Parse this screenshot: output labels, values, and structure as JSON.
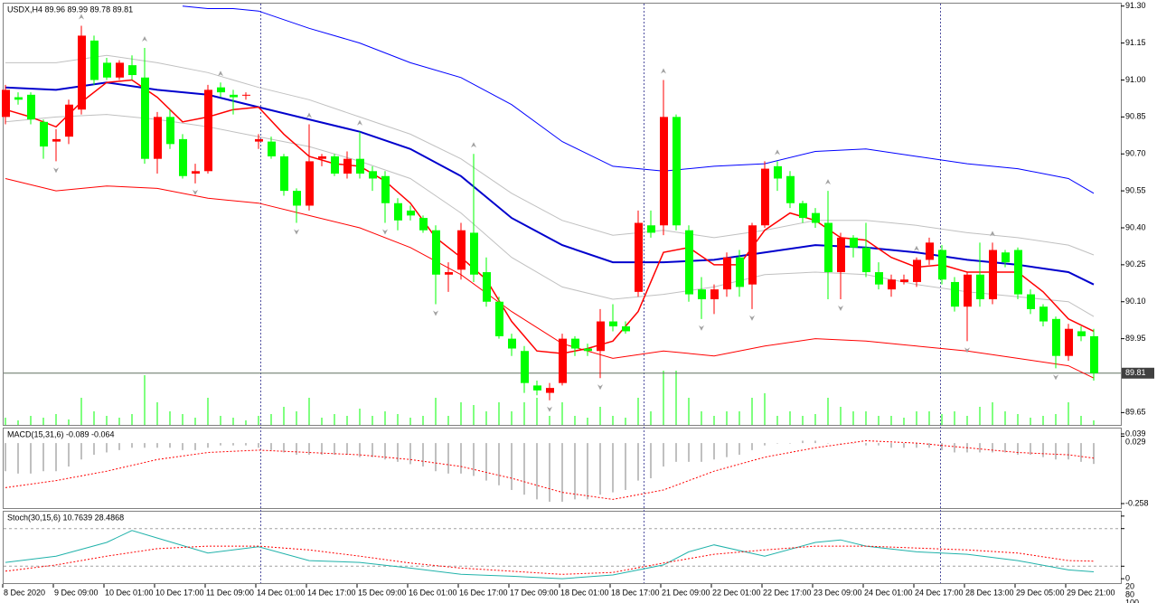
{
  "chart_data": [
    {
      "type": "candlestick",
      "title": "USDX,H4  89.96 89.99 89.78 89.81",
      "categories": [
        "8 Dec 2020",
        null,
        null,
        null,
        "9 Dec 09:00",
        null,
        null,
        null,
        "10 Dec 01:00",
        null,
        null,
        null,
        "10 Dec 17:00",
        null,
        null,
        null,
        "11 Dec 09:00",
        null,
        null,
        null,
        "14 Dec 01:00",
        null,
        null,
        null,
        "14 Dec 17:00",
        null,
        null,
        null,
        "15 Dec 09:00",
        null,
        null,
        null,
        "16 Dec 01:00",
        null,
        null,
        null,
        "16 Dec 17:00",
        null,
        null,
        null,
        "17 Dec 09:00",
        null,
        null,
        null,
        "18 Dec 01:00",
        null,
        null,
        null,
        "18 Dec 17:00",
        null,
        null,
        null,
        "21 Dec 09:00",
        null,
        null,
        null,
        "22 Dec 01:00",
        null,
        null,
        null,
        "22 Dec 17:00",
        null,
        null,
        null,
        "23 Dec 09:00",
        null,
        null,
        null,
        "24 Dec 01:00",
        null,
        null,
        null,
        "24 Dec 17:00",
        null,
        null,
        null,
        "28 Dec 13:00",
        null,
        null,
        null,
        "29 Dec 05:00",
        null,
        null,
        null,
        "29 Dec 21:00",
        null,
        null
      ],
      "open": [
        90.85,
        90.93,
        90.94,
        90.83,
        90.75,
        90.77,
        90.88,
        91.16,
        91.07,
        91.01,
        91.06,
        91.01,
        90.68,
        90.85,
        90.76,
        90.62,
        90.63,
        90.97,
        90.94,
        90.94,
        90.75,
        90.75,
        90.69,
        90.55,
        90.49,
        90.68,
        90.69,
        90.62,
        90.68,
        90.63,
        90.61,
        90.5,
        90.47,
        90.44,
        90.39,
        90.21,
        90.23,
        90.38,
        90.22,
        90.1,
        89.95,
        89.9,
        89.76,
        89.73,
        89.77,
        89.95,
        89.91,
        89.9,
        90.02,
        90.0,
        90.14,
        90.41,
        90.41,
        90.85,
        90.39,
        90.15,
        90.11,
        90.15,
        90.28,
        90.17,
        90.41,
        90.65,
        90.61,
        90.5,
        90.46,
        90.42,
        90.22,
        90.36,
        90.32,
        90.22,
        90.15,
        90.18,
        90.18,
        90.27,
        90.31,
        90.18,
        90.08,
        90.21,
        90.11,
        90.3,
        90.31,
        90.13,
        90.08,
        90.03,
        89.88,
        89.98,
        89.96
      ],
      "high": [
        90.98,
        90.95,
        90.95,
        90.84,
        90.8,
        90.92,
        91.22,
        91.18,
        91.09,
        91.08,
        91.1,
        91.13,
        90.87,
        90.88,
        90.78,
        90.66,
        90.98,
        90.99,
        90.96,
        90.95,
        90.78,
        90.77,
        90.7,
        90.56,
        90.82,
        90.7,
        90.7,
        90.71,
        90.79,
        90.65,
        90.63,
        90.52,
        90.49,
        90.45,
        90.41,
        90.26,
        90.42,
        90.7,
        90.28,
        90.12,
        89.97,
        89.92,
        89.78,
        89.77,
        89.97,
        89.96,
        89.93,
        90.07,
        90.09,
        90.02,
        90.47,
        90.47,
        91.0,
        90.86,
        90.41,
        90.2,
        90.17,
        90.3,
        90.31,
        90.42,
        90.67,
        90.67,
        90.63,
        90.51,
        90.48,
        90.55,
        90.38,
        90.37,
        90.42,
        90.26,
        90.21,
        90.21,
        90.28,
        90.36,
        90.33,
        90.2,
        90.22,
        90.34,
        90.34,
        90.31,
        90.32,
        90.15,
        90.09,
        90.04,
        90.01,
        90.0,
        89.99
      ],
      "low": [
        90.82,
        90.9,
        90.82,
        90.68,
        90.67,
        90.74,
        90.86,
        90.98,
        91.0,
        91.0,
        91.0,
        90.66,
        90.62,
        90.72,
        90.6,
        90.58,
        90.62,
        90.93,
        90.86,
        90.92,
        90.72,
        90.68,
        90.53,
        90.42,
        90.47,
        90.65,
        90.61,
        90.6,
        90.6,
        90.55,
        90.42,
        90.39,
        90.43,
        90.38,
        90.09,
        90.14,
        90.19,
        90.18,
        90.08,
        89.95,
        89.88,
        89.73,
        89.72,
        89.7,
        89.76,
        89.88,
        89.88,
        89.79,
        89.98,
        89.97,
        90.12,
        90.36,
        90.37,
        90.39,
        90.1,
        90.03,
        90.05,
        90.12,
        90.12,
        90.07,
        90.4,
        90.55,
        90.48,
        90.42,
        90.4,
        90.11,
        90.11,
        90.28,
        90.2,
        90.15,
        90.12,
        90.17,
        90.16,
        90.25,
        90.17,
        90.06,
        89.94,
        90.08,
        90.09,
        90.24,
        90.11,
        90.05,
        90.0,
        89.83,
        89.86,
        89.94,
        89.78
      ],
      "close": [
        90.96,
        90.92,
        90.84,
        90.73,
        90.76,
        90.9,
        91.18,
        91.0,
        91.01,
        91.07,
        91.02,
        90.68,
        90.85,
        90.74,
        90.61,
        90.63,
        90.96,
        90.95,
        90.93,
        90.94,
        90.76,
        90.69,
        90.55,
        90.49,
        90.67,
        90.69,
        90.62,
        90.68,
        90.62,
        90.6,
        90.5,
        90.43,
        90.45,
        90.39,
        90.21,
        90.22,
        90.39,
        90.21,
        90.1,
        89.96,
        89.91,
        89.77,
        89.74,
        89.75,
        89.95,
        89.91,
        89.9,
        90.02,
        90.0,
        89.98,
        90.42,
        90.38,
        90.85,
        90.41,
        90.13,
        90.11,
        90.15,
        90.28,
        90.16,
        90.41,
        90.64,
        90.6,
        90.5,
        90.44,
        90.42,
        90.22,
        90.36,
        90.32,
        90.22,
        90.17,
        90.19,
        90.19,
        90.27,
        90.34,
        90.19,
        90.08,
        90.21,
        90.11,
        90.31,
        90.26,
        90.13,
        90.07,
        90.02,
        89.88,
        89.99,
        89.96,
        89.81
      ],
      "up_color": "#ff0000",
      "down_color": "#00ff00",
      "volume": [
        8,
        5,
        10,
        8,
        12,
        6,
        30,
        15,
        10,
        8,
        12,
        55,
        25,
        15,
        12,
        8,
        30,
        10,
        8,
        5,
        10,
        12,
        20,
        15,
        30,
        8,
        12,
        10,
        18,
        10,
        15,
        12,
        8,
        10,
        30,
        10,
        25,
        22,
        15,
        25,
        15,
        25,
        30,
        10,
        25,
        10,
        8,
        20,
        10,
        8,
        30,
        15,
        60,
        60,
        30,
        15,
        10,
        15,
        15,
        30,
        35,
        10,
        15,
        10,
        12,
        30,
        20,
        15,
        15,
        10,
        10,
        8,
        15,
        15,
        12,
        15,
        10,
        20,
        25,
        15,
        12,
        8,
        10,
        12,
        25,
        10,
        5
      ],
      "volume_color": "#00ff00",
      "fractals_up": [
        6,
        11,
        17,
        24,
        28,
        37,
        52,
        61,
        65,
        72,
        78
      ],
      "fractals_down": [
        4,
        15,
        23,
        30,
        34,
        43,
        47,
        55,
        59,
        66,
        76,
        83
      ],
      "series": [
        {
          "color": "#0000ff",
          "width": 1,
          "x": [
            14,
            16,
            18,
            20,
            24,
            28,
            32,
            36,
            40,
            44,
            48,
            52,
            56,
            60,
            64,
            68,
            72,
            76,
            80,
            84,
            86
          ],
          "values": [
            91.3,
            91.29,
            91.29,
            91.28,
            91.21,
            91.15,
            91.07,
            91.01,
            90.9,
            90.75,
            90.65,
            90.63,
            90.65,
            90.66,
            90.71,
            90.72,
            90.69,
            90.66,
            90.64,
            90.6,
            90.54
          ]
        },
        {
          "color": "#c0c0c0",
          "width": 1,
          "x": [
            0,
            4,
            8,
            12,
            16,
            20,
            24,
            28,
            32,
            36,
            40,
            44,
            48,
            52,
            56,
            60,
            64,
            68,
            72,
            76,
            80,
            84,
            86
          ],
          "values": [
            91.07,
            91.07,
            91.1,
            91.07,
            91.03,
            90.97,
            90.92,
            90.85,
            90.78,
            90.68,
            90.54,
            90.43,
            90.37,
            90.39,
            90.36,
            90.39,
            90.43,
            90.43,
            90.41,
            90.38,
            90.36,
            90.33,
            90.29
          ]
        },
        {
          "color": "#0000cd",
          "width": 2,
          "x": [
            0,
            4,
            8,
            12,
            16,
            20,
            24,
            28,
            32,
            36,
            40,
            44,
            48,
            52,
            56,
            60,
            64,
            68,
            72,
            76,
            80,
            84,
            86
          ],
          "values": [
            90.97,
            90.96,
            90.99,
            90.96,
            90.94,
            90.89,
            90.84,
            90.79,
            90.72,
            90.61,
            90.44,
            90.33,
            90.26,
            90.26,
            90.27,
            90.3,
            90.33,
            90.32,
            90.3,
            90.27,
            90.25,
            90.22,
            90.17
          ]
        },
        {
          "color": "#c0c0c0",
          "width": 1,
          "x": [
            0,
            4,
            8,
            12,
            16,
            20,
            24,
            28,
            32,
            36,
            40,
            44,
            48,
            52,
            56,
            60,
            64,
            68,
            72,
            76,
            80,
            84,
            86
          ],
          "values": [
            90.83,
            90.85,
            90.86,
            90.84,
            90.81,
            90.77,
            90.73,
            90.67,
            90.6,
            90.46,
            90.28,
            90.16,
            90.11,
            90.13,
            90.16,
            90.21,
            90.22,
            90.21,
            90.17,
            90.14,
            90.12,
            90.1,
            90.04
          ]
        },
        {
          "color": "#ff0000",
          "width": 1,
          "x": [
            0,
            4,
            8,
            12,
            16,
            20,
            24,
            28,
            32,
            36,
            40,
            44,
            48,
            52,
            56,
            60,
            64,
            68,
            72,
            76,
            80,
            84,
            86
          ],
          "values": [
            90.6,
            90.55,
            90.57,
            90.56,
            90.52,
            90.5,
            90.45,
            90.4,
            90.32,
            90.21,
            90.06,
            89.93,
            89.87,
            89.9,
            89.88,
            89.92,
            89.95,
            89.94,
            89.92,
            89.9,
            89.87,
            89.84,
            89.79
          ]
        },
        {
          "color": "#ff0000",
          "width": 1.5,
          "x": [
            0,
            2,
            4,
            6,
            8,
            10,
            12,
            14,
            16,
            18,
            20,
            22,
            24,
            26,
            28,
            30,
            32,
            34,
            36,
            38,
            40,
            42,
            44,
            46,
            48,
            50,
            52,
            54,
            56,
            58,
            60,
            62,
            64,
            66,
            68,
            70,
            72,
            74,
            76,
            78,
            80,
            82,
            84,
            86
          ],
          "values": [
            90.88,
            90.85,
            90.81,
            90.91,
            90.99,
            91.0,
            90.93,
            90.83,
            90.85,
            90.88,
            90.89,
            90.78,
            90.69,
            90.66,
            90.65,
            90.59,
            90.5,
            90.36,
            90.28,
            90.19,
            90.02,
            89.9,
            89.89,
            89.91,
            89.94,
            90.06,
            90.3,
            90.32,
            90.25,
            90.25,
            90.39,
            90.46,
            90.43,
            90.36,
            90.35,
            90.28,
            90.24,
            90.25,
            90.22,
            90.22,
            90.22,
            90.14,
            90.03,
            89.98
          ]
        }
      ],
      "last_price": 89.81,
      "ylim": [
        89.6,
        91.31
      ],
      "yticks": [
        {
          "value": 91.3,
          "label": "91.30"
        },
        91.15,
        {
          "value": 91.0,
          "label": "91.00"
        },
        90.85,
        {
          "value": 90.7,
          "label": "90.70"
        },
        90.55,
        {
          "value": 90.4,
          "label": "90.40"
        },
        90.25,
        {
          "value": 90.1,
          "label": "90.10"
        },
        89.95,
        89.65
      ]
    },
    {
      "type": "macd",
      "title": "MACD(15,31,6) -0.089 -0.064",
      "values": [
        -0.12,
        -0.13,
        -0.13,
        -0.12,
        -0.12,
        -0.1,
        -0.07,
        -0.05,
        -0.04,
        -0.03,
        -0.02,
        -0.02,
        -0.02,
        -0.02,
        -0.03,
        -0.03,
        -0.02,
        -0.01,
        -0.01,
        -0.01,
        -0.02,
        -0.03,
        -0.04,
        -0.05,
        -0.05,
        -0.05,
        -0.05,
        -0.05,
        -0.06,
        -0.06,
        -0.07,
        -0.08,
        -0.09,
        -0.1,
        -0.12,
        -0.13,
        -0.13,
        -0.14,
        -0.16,
        -0.18,
        -0.2,
        -0.22,
        -0.24,
        -0.25,
        -0.25,
        -0.24,
        -0.24,
        -0.22,
        -0.21,
        -0.2,
        -0.16,
        -0.15,
        -0.1,
        -0.08,
        -0.08,
        -0.08,
        -0.07,
        -0.06,
        -0.05,
        -0.03,
        -0.01,
        0.0,
        0.0,
        0.01,
        0.01,
        0.0,
        0.0,
        0.0,
        -0.01,
        -0.01,
        -0.02,
        -0.02,
        -0.02,
        -0.02,
        -0.03,
        -0.04,
        -0.04,
        -0.04,
        -0.04,
        -0.04,
        -0.05,
        -0.05,
        -0.06,
        -0.07,
        -0.07,
        -0.08,
        -0.089
      ],
      "color": "#c0c0c0",
      "signal": {
        "color": "#ff0000",
        "x": [
          0,
          4,
          8,
          12,
          16,
          20,
          24,
          28,
          32,
          36,
          40,
          44,
          48,
          52,
          56,
          60,
          64,
          68,
          72,
          76,
          80,
          84,
          86
        ],
        "values": [
          -0.19,
          -0.16,
          -0.12,
          -0.07,
          -0.04,
          -0.03,
          -0.04,
          -0.05,
          -0.07,
          -0.1,
          -0.15,
          -0.21,
          -0.24,
          -0.2,
          -0.12,
          -0.06,
          -0.02,
          0.01,
          0.0,
          -0.02,
          -0.04,
          -0.05,
          -0.064
        ]
      },
      "ylim": [
        -0.281,
        0.062
      ],
      "yticks": [
        0.039,
        0.029,
        -0.258
      ]
    },
    {
      "type": "line",
      "title": "Stoch(30,15,6) 10.7639 28.4868",
      "series": [
        {
          "color": "#20b2aa",
          "dash": false,
          "x": [
            0,
            4,
            8,
            10,
            12,
            16,
            20,
            24,
            28,
            32,
            36,
            40,
            44,
            48,
            52,
            54,
            56,
            60,
            64,
            66,
            68,
            72,
            76,
            80,
            84,
            86
          ],
          "values": [
            26,
            36,
            58,
            77,
            65,
            41,
            51,
            29,
            26,
            17,
            7,
            4,
            0,
            6,
            22,
            43,
            54,
            36,
            58,
            62,
            52,
            43,
            39,
            29,
            14,
            11
          ]
        },
        {
          "color": "#ff0000",
          "dash": true,
          "x": [
            0,
            4,
            8,
            12,
            16,
            20,
            24,
            28,
            32,
            36,
            40,
            44,
            48,
            52,
            56,
            60,
            64,
            68,
            72,
            76,
            80,
            84,
            86
          ],
          "values": [
            12,
            22,
            36,
            48,
            52,
            52,
            46,
            36,
            25,
            17,
            12,
            7,
            10,
            25,
            39,
            46,
            52,
            52,
            49,
            46,
            41,
            29,
            28
          ]
        }
      ],
      "levels": [
        20,
        80
      ],
      "ylim": [
        -7,
        107
      ],
      "yticks": [
        0,
        20,
        80,
        100
      ]
    }
  ]
}
